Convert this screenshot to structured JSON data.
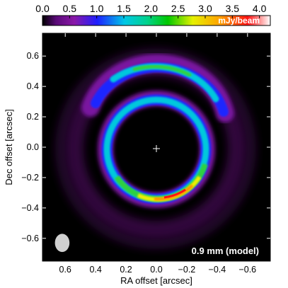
{
  "chart_data": {
    "type": "heatmap",
    "title": "",
    "xlabel": "RA offset [arcsec]",
    "ylabel": "Dec offset [arcsec]",
    "xlim": [
      0.75,
      -0.75
    ],
    "ylim": [
      -0.75,
      0.75
    ],
    "x_ticks": [
      "0.6",
      "0.4",
      "0.2",
      "0.0",
      "−0.2",
      "−0.4",
      "−0.6"
    ],
    "x_tick_values": [
      0.6,
      0.4,
      0.2,
      0.0,
      -0.2,
      -0.4,
      -0.6
    ],
    "y_ticks": [
      "−0.6",
      "−0.4",
      "−0.2",
      "0.0",
      "0.2",
      "0.4",
      "0.6"
    ],
    "y_tick_values": [
      -0.6,
      -0.4,
      -0.2,
      0.0,
      0.2,
      0.4,
      0.6
    ],
    "colorbar": {
      "label": "mJy/beam",
      "range": [
        0.0,
        4.2
      ],
      "ticks": [
        "0.0",
        "0.5",
        "1.0",
        "1.5",
        "2.0",
        "2.5",
        "3.0",
        "3.5",
        "4.0"
      ],
      "tick_values": [
        0.0,
        0.5,
        1.0,
        1.5,
        2.0,
        2.5,
        3.0,
        3.5,
        4.0
      ],
      "colormap": [
        "#000000",
        "#7a0a9e",
        "#1e1eff",
        "#00c8e6",
        "#00c800",
        "#ffff00",
        "#ff8c00",
        "#ff0000",
        "#ffffff"
      ],
      "position": "top"
    },
    "annotation": "0.9 mm (model)",
    "features": {
      "inner_ring": {
        "radius_arcsec": 0.22,
        "peak_mJy_per_beam": 4.0,
        "peak_position_angle": "south-west"
      },
      "outer_arc": {
        "radius_arcsec": 0.42,
        "peak_mJy_per_beam": 2.3,
        "extent": "north-east to south-west through north"
      },
      "faint_halo_radius_arcsec": 0.5,
      "center_marker": "+",
      "beam": {
        "ra_arcsec": 0.62,
        "dec_arcsec": -0.63,
        "major_arcsec": 0.05,
        "minor_arcsec": 0.04
      }
    },
    "grid": false
  }
}
